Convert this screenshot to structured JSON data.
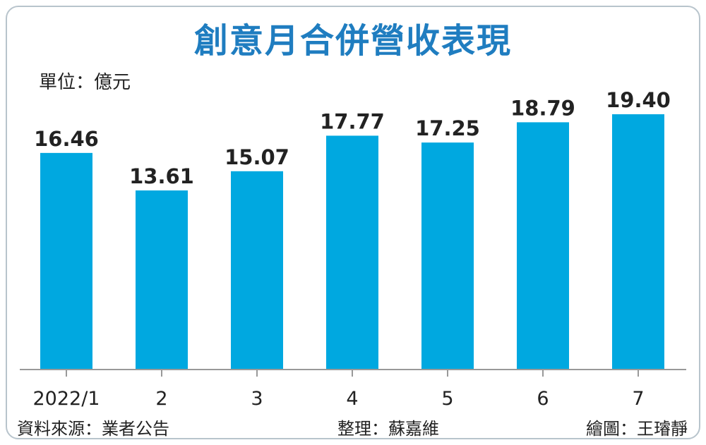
{
  "chart_data": {
    "type": "bar",
    "title": "創意月合併營收表現",
    "unit_label": "單位：億元",
    "categories": [
      "2022/1",
      "2",
      "3",
      "4",
      "5",
      "6",
      "7"
    ],
    "values": [
      16.46,
      13.61,
      15.07,
      17.77,
      17.25,
      18.79,
      19.4
    ],
    "value_labels": [
      "16.46",
      "13.61",
      "15.07",
      "17.77",
      "17.25",
      "18.79",
      "19.40"
    ],
    "ylim": [
      0,
      19.4
    ],
    "grid": false,
    "bar_color": "#00a8e0",
    "axis_color": "#999999"
  },
  "footer": {
    "source": "資料來源：業者公告",
    "compiled": "整理：蘇嘉維",
    "artist": "繪圖：王璿靜"
  },
  "colors": {
    "title": "#1f7dc0",
    "border": "#b8c4cc"
  }
}
